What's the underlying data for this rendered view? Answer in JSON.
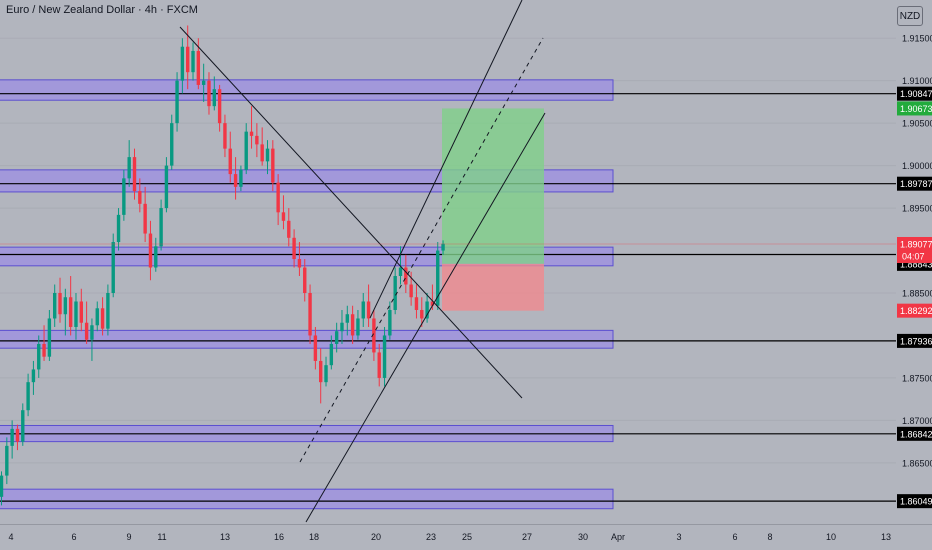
{
  "chart_data": {
    "type": "candlestick",
    "title": "Euro / New Zealand Dollar · 4h · FXCM",
    "currency": "NZD",
    "ylim": [
      1.8578,
      1.9195
    ],
    "y_ticks": [
      "1.91500",
      "1.91000",
      "1.90500",
      "1.90000",
      "1.89500",
      "1.88500",
      "1.87500",
      "1.87000",
      "1.86500"
    ],
    "x_ticks": [
      "4",
      "6",
      "9",
      "11",
      "13",
      "16",
      "18",
      "20",
      "23",
      "25",
      "27",
      "30",
      "Apr",
      "3",
      "6",
      "8",
      "10",
      "13"
    ],
    "levels": [
      {
        "value": 1.90847,
        "label": "1.90847"
      },
      {
        "value": 1.89787,
        "label": "1.89787"
      },
      {
        "value": 1.88953,
        "label": "1.88953"
      },
      {
        "value": 1.87936,
        "label": "1.87936"
      },
      {
        "value": 1.86842,
        "label": "1.86842"
      },
      {
        "value": 1.86049,
        "label": "1.86049"
      }
    ],
    "zones": [
      [
        1.9077,
        1.9101
      ],
      [
        1.8969,
        1.8995
      ],
      [
        1.8882,
        1.8904
      ],
      [
        1.8785,
        1.8806
      ],
      [
        1.8675,
        1.8694
      ],
      [
        1.8596,
        1.8619
      ]
    ],
    "trade": {
      "entry": 1.88843,
      "entry_label": "1.88843",
      "target": 1.90673,
      "target_label": "1.90673",
      "stop": 1.88292,
      "stop_label": "1.88292"
    },
    "last_price": {
      "value": 1.89077,
      "label": "1.89077",
      "countdown": "04:07"
    },
    "colors": {
      "up": "#089981",
      "down": "#f23645",
      "zone_fill": "#9c8fe3",
      "zone_stroke": "#5b4fd0",
      "target": "#22ab3c",
      "stop": "#f23645",
      "last_price": "#f23645",
      "profit_fill": "#7fd18a",
      "loss_fill": "#f08a8f"
    },
    "candles": [
      [
        1.861,
        1.864,
        1.86,
        1.8635
      ],
      [
        1.8635,
        1.868,
        1.8625,
        1.867
      ],
      [
        1.867,
        1.87,
        1.8655,
        1.869
      ],
      [
        1.869,
        1.8695,
        1.8665,
        1.8675
      ],
      [
        1.8675,
        1.872,
        1.867,
        1.8712
      ],
      [
        1.8712,
        1.8755,
        1.8705,
        1.8745
      ],
      [
        1.8745,
        1.877,
        1.873,
        1.876
      ],
      [
        1.876,
        1.88,
        1.875,
        1.879
      ],
      [
        1.879,
        1.8812,
        1.877,
        1.8775
      ],
      [
        1.8775,
        1.883,
        1.877,
        1.882
      ],
      [
        1.882,
        1.886,
        1.881,
        1.885
      ],
      [
        1.885,
        1.8868,
        1.8815,
        1.8825
      ],
      [
        1.8825,
        1.8855,
        1.88,
        1.8845
      ],
      [
        1.8845,
        1.887,
        1.88,
        1.881
      ],
      [
        1.881,
        1.885,
        1.8795,
        1.884
      ],
      [
        1.884,
        1.8855,
        1.8805,
        1.8815
      ],
      [
        1.8815,
        1.884,
        1.879,
        1.8795
      ],
      [
        1.8795,
        1.882,
        1.877,
        1.8812
      ],
      [
        1.8812,
        1.884,
        1.8805,
        1.8832
      ],
      [
        1.8832,
        1.8845,
        1.88,
        1.8808
      ],
      [
        1.8808,
        1.886,
        1.88,
        1.885
      ],
      [
        1.885,
        1.892,
        1.8845,
        1.891
      ],
      [
        1.891,
        1.895,
        1.89,
        1.8942
      ],
      [
        1.8942,
        1.8995,
        1.8935,
        1.8985
      ],
      [
        1.8985,
        1.903,
        1.8975,
        1.901
      ],
      [
        1.901,
        1.902,
        1.896,
        1.897
      ],
      [
        1.897,
        1.8985,
        1.8945,
        1.8955
      ],
      [
        1.8955,
        1.8975,
        1.891,
        1.892
      ],
      [
        1.892,
        1.8935,
        1.8865,
        1.888
      ],
      [
        1.888,
        1.8915,
        1.8875,
        1.8905
      ],
      [
        1.8905,
        1.896,
        1.89,
        1.895
      ],
      [
        1.895,
        1.901,
        1.8945,
        1.9
      ],
      [
        1.9,
        1.906,
        1.8995,
        1.905
      ],
      [
        1.905,
        1.911,
        1.904,
        1.91
      ],
      [
        1.91,
        1.915,
        1.9085,
        1.914
      ],
      [
        1.914,
        1.9165,
        1.909,
        1.911
      ],
      [
        1.911,
        1.9145,
        1.91,
        1.9135
      ],
      [
        1.9135,
        1.915,
        1.909,
        1.9095
      ],
      [
        1.9095,
        1.912,
        1.9075,
        1.91
      ],
      [
        1.91,
        1.911,
        1.906,
        1.907
      ],
      [
        1.907,
        1.9105,
        1.9065,
        1.909
      ],
      [
        1.909,
        1.9095,
        1.904,
        1.905
      ],
      [
        1.905,
        1.906,
        1.901,
        1.902
      ],
      [
        1.902,
        1.904,
        1.898,
        1.899
      ],
      [
        1.899,
        1.901,
        1.896,
        1.8975
      ],
      [
        1.8975,
        1.9,
        1.897,
        1.8995
      ],
      [
        1.8995,
        1.905,
        1.899,
        1.904
      ],
      [
        1.904,
        1.907,
        1.902,
        1.9035
      ],
      [
        1.9035,
        1.905,
        1.901,
        1.9025
      ],
      [
        1.9025,
        1.9045,
        1.9,
        1.9005
      ],
      [
        1.9005,
        1.903,
        1.899,
        1.902
      ],
      [
        1.902,
        1.903,
        1.897,
        1.898
      ],
      [
        1.898,
        1.899,
        1.893,
        1.8945
      ],
      [
        1.8945,
        1.8965,
        1.8925,
        1.8935
      ],
      [
        1.8935,
        1.895,
        1.8905,
        1.8915
      ],
      [
        1.8915,
        1.8925,
        1.888,
        1.889
      ],
      [
        1.889,
        1.891,
        1.887,
        1.888
      ],
      [
        1.888,
        1.889,
        1.884,
        1.885
      ],
      [
        1.885,
        1.886,
        1.879,
        1.88
      ],
      [
        1.88,
        1.881,
        1.876,
        1.877
      ],
      [
        1.877,
        1.8785,
        1.872,
        1.8745
      ],
      [
        1.8745,
        1.8775,
        1.874,
        1.8765
      ],
      [
        1.8765,
        1.88,
        1.876,
        1.879
      ],
      [
        1.879,
        1.8815,
        1.878,
        1.8805
      ],
      [
        1.8805,
        1.883,
        1.879,
        1.8815
      ],
      [
        1.8815,
        1.8835,
        1.88,
        1.8825
      ],
      [
        1.8825,
        1.8835,
        1.879,
        1.88
      ],
      [
        1.88,
        1.883,
        1.8795,
        1.882
      ],
      [
        1.882,
        1.885,
        1.881,
        1.884
      ],
      [
        1.884,
        1.886,
        1.881,
        1.882
      ],
      [
        1.882,
        1.883,
        1.877,
        1.878
      ],
      [
        1.878,
        1.879,
        1.874,
        1.875
      ],
      [
        1.875,
        1.881,
        1.874,
        1.88
      ],
      [
        1.88,
        1.884,
        1.8795,
        1.883
      ],
      [
        1.883,
        1.888,
        1.8825,
        1.887
      ],
      [
        1.887,
        1.8905,
        1.886,
        1.888
      ],
      [
        1.888,
        1.8895,
        1.885,
        1.886
      ],
      [
        1.886,
        1.8875,
        1.8835,
        1.8845
      ],
      [
        1.8845,
        1.886,
        1.882,
        1.883
      ],
      [
        1.883,
        1.8845,
        1.881,
        1.882
      ],
      [
        1.882,
        1.885,
        1.8815,
        1.884
      ],
      [
        1.884,
        1.886,
        1.883,
        1.8835
      ],
      [
        1.8835,
        1.891,
        1.883,
        1.89
      ],
      [
        1.89,
        1.8912,
        1.8895,
        1.8908
      ]
    ]
  }
}
